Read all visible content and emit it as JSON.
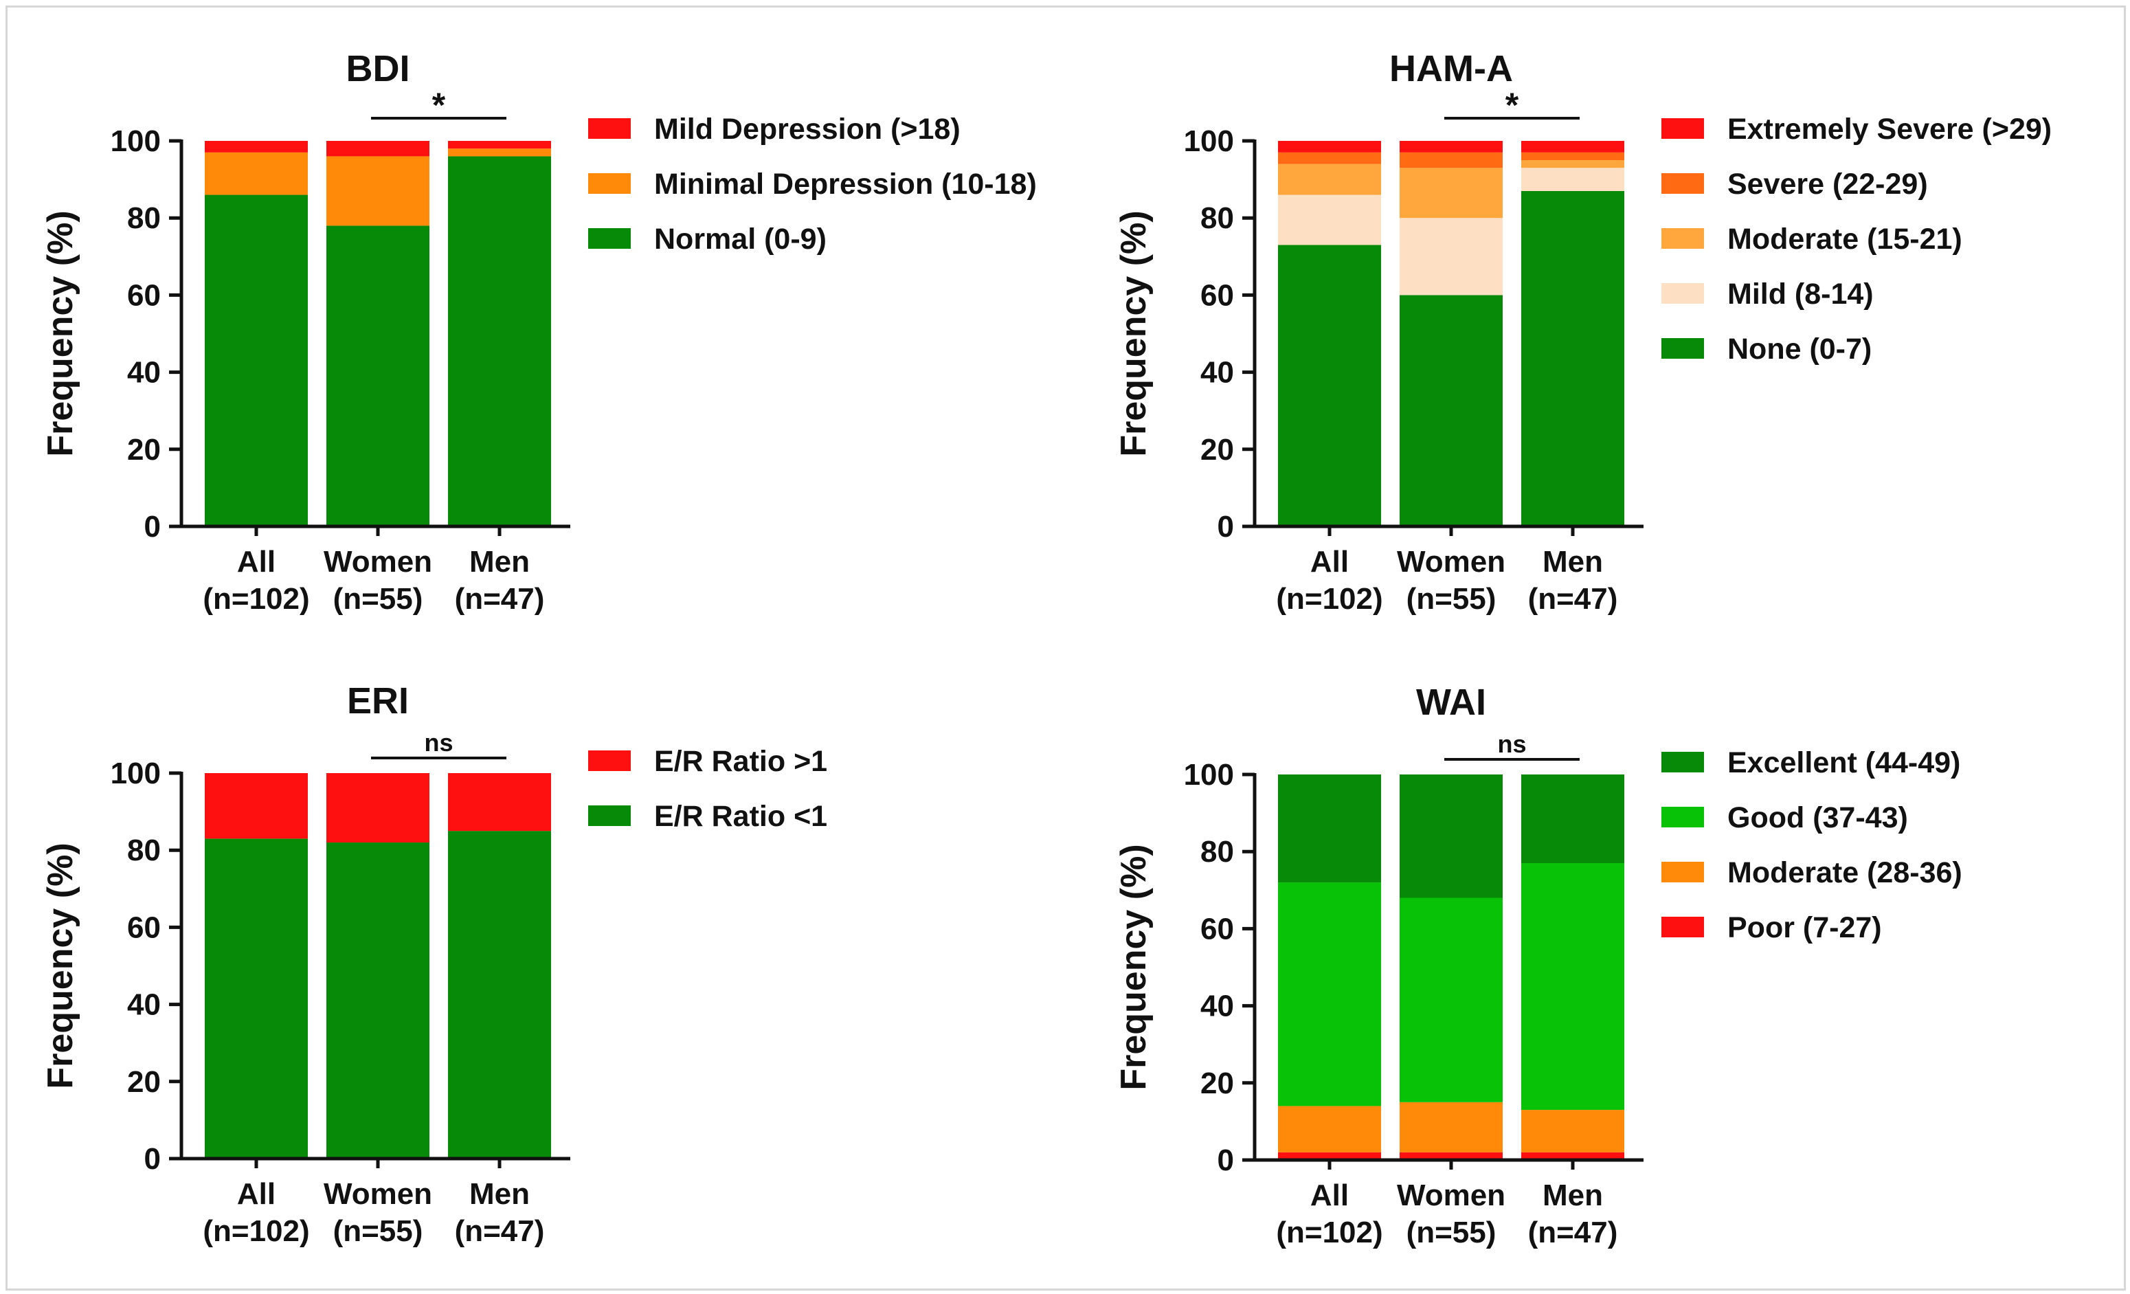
{
  "figure_title": "Stacked bar charts of BDI, HAM-A, ERI and WAI categories by group",
  "chart_data": [
    {
      "type": "bar",
      "stacked": true,
      "title": "BDI",
      "xlabel": "",
      "ylabel": "Frequency (%)",
      "ylim": [
        0,
        100
      ],
      "yticks": [
        0,
        20,
        40,
        60,
        80,
        100
      ],
      "categories": [
        [
          "All",
          "(n=102)"
        ],
        [
          "Women",
          "(n=55)"
        ],
        [
          "Men",
          "(n=47)"
        ]
      ],
      "significance": "*",
      "series": [
        {
          "name": "Normal (0-9)",
          "color": "#078a07",
          "values": [
            86,
            78,
            96
          ]
        },
        {
          "name": "Minimal Depression (10-18)",
          "color": "#ff8a0a",
          "values": [
            11,
            18,
            2
          ]
        },
        {
          "name": "Mild Depression (>18)",
          "color": "#ff1010",
          "values": [
            3,
            4,
            2
          ]
        }
      ],
      "legend_order": [
        "Mild Depression (>18)",
        "Minimal Depression (10-18)",
        "Normal (0-9)"
      ]
    },
    {
      "type": "bar",
      "stacked": true,
      "title": "HAM-A",
      "xlabel": "",
      "ylabel": "Frequency (%)",
      "ylim": [
        0,
        100
      ],
      "yticks": [
        0,
        20,
        40,
        60,
        80,
        100
      ],
      "categories": [
        [
          "All",
          "(n=102)"
        ],
        [
          "Women",
          "(n=55)"
        ],
        [
          "Men",
          "(n=47)"
        ]
      ],
      "significance": "*",
      "series": [
        {
          "name": "None (0-7)",
          "color": "#078a07",
          "values": [
            73,
            60,
            87
          ]
        },
        {
          "name": "Mild (8-14)",
          "color": "#fde0c4",
          "values": [
            13,
            20,
            6
          ]
        },
        {
          "name": "Moderate (15-21)",
          "color": "#ffa63d",
          "values": [
            8,
            13,
            2
          ]
        },
        {
          "name": "Severe (22-29)",
          "color": "#ff6a12",
          "values": [
            3,
            4,
            2
          ]
        },
        {
          "name": "Extremely Severe (>29)",
          "color": "#ff1010",
          "values": [
            3,
            3,
            3
          ]
        }
      ],
      "legend_order": [
        "Extremely Severe (>29)",
        "Severe (22-29)",
        "Moderate (15-21)",
        "Mild (8-14)",
        "None (0-7)"
      ]
    },
    {
      "type": "bar",
      "stacked": true,
      "title": "ERI",
      "xlabel": "",
      "ylabel": "Frequency (%)",
      "ylim": [
        0,
        100
      ],
      "yticks": [
        0,
        20,
        40,
        60,
        80,
        100
      ],
      "categories": [
        [
          "All",
          "(n=102)"
        ],
        [
          "Women",
          "(n=55)"
        ],
        [
          "Men",
          "(n=47)"
        ]
      ],
      "significance": "ns",
      "series": [
        {
          "name": "E/R Ratio <1",
          "color": "#078a07",
          "values": [
            83,
            82,
            85
          ]
        },
        {
          "name": "E/R Ratio >1",
          "color": "#ff1010",
          "values": [
            17,
            18,
            15
          ]
        }
      ],
      "legend_order": [
        "E/R Ratio >1",
        "E/R Ratio <1"
      ]
    },
    {
      "type": "bar",
      "stacked": true,
      "title": "WAI",
      "xlabel": "",
      "ylabel": "Frequency (%)",
      "ylim": [
        0,
        100
      ],
      "yticks": [
        0,
        20,
        40,
        60,
        80,
        100
      ],
      "categories": [
        [
          "All",
          "(n=102)"
        ],
        [
          "Women",
          "(n=55)"
        ],
        [
          "Men",
          "(n=47)"
        ]
      ],
      "significance": "ns",
      "series": [
        {
          "name": "Poor (7-27)",
          "color": "#ff1010",
          "values": [
            2,
            2,
            2
          ]
        },
        {
          "name": "Moderate (28-36)",
          "color": "#ff8a0a",
          "values": [
            12,
            13,
            11
          ]
        },
        {
          "name": "Good (37-43)",
          "color": "#07c207",
          "values": [
            58,
            53,
            64
          ]
        },
        {
          "name": "Excellent (44-49)",
          "color": "#078a07",
          "values": [
            28,
            32,
            23
          ]
        }
      ],
      "legend_order": [
        "Excellent (44-49)",
        "Good (37-43)",
        "Moderate (28-36)",
        "Poor (7-27)"
      ]
    }
  ]
}
